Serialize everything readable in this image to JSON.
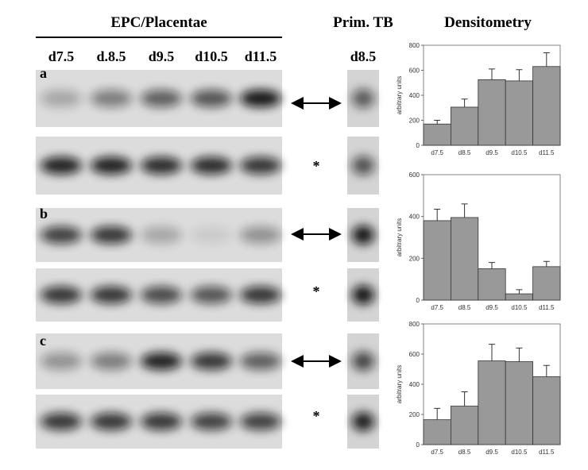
{
  "figure": {
    "headers": [
      "EPC/Placentae",
      "Prim. TB",
      "Densitometry"
    ],
    "lanes": [
      "d7.5",
      "d.8.5",
      "d9.5",
      "d10.5",
      "d11.5"
    ],
    "prim_lane": "d8.5",
    "panels": [
      "a",
      "b",
      "c"
    ],
    "markers": [
      "*",
      "*",
      "*"
    ]
  },
  "chart_data": [
    {
      "type": "bar",
      "ylabel": "arbitrary units",
      "color": "#999999",
      "categories": [
        "d7.5",
        "d8.5",
        "d9.5",
        "d10.5",
        "d11.5"
      ],
      "values": [
        170,
        305,
        525,
        515,
        630
      ],
      "errors": [
        30,
        65,
        85,
        90,
        110
      ],
      "ylim": [
        0,
        800
      ],
      "yticks": [
        0,
        200,
        400,
        600,
        800
      ]
    },
    {
      "type": "bar",
      "ylabel": "arbitrary units",
      "color": "#999999",
      "categories": [
        "d7.5",
        "d8.5",
        "d9.5",
        "d10.5",
        "d11.5"
      ],
      "values": [
        380,
        395,
        150,
        30,
        160
      ],
      "errors": [
        55,
        65,
        30,
        20,
        25
      ],
      "ylim": [
        0,
        600
      ],
      "yticks": [
        0,
        200,
        400,
        600
      ]
    },
    {
      "type": "bar",
      "ylabel": "arbitrary units",
      "color": "#999999",
      "categories": [
        "d7.5",
        "d8.5",
        "d9.5",
        "d10.5",
        "d11.5"
      ],
      "values": [
        165,
        255,
        555,
        550,
        450
      ],
      "errors": [
        75,
        95,
        110,
        90,
        75
      ],
      "ylim": [
        0,
        800
      ],
      "yticks": [
        0,
        200,
        400,
        600,
        800
      ]
    }
  ]
}
